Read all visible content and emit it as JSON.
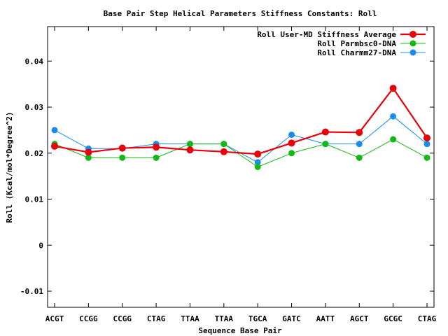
{
  "chart_data": {
    "type": "line",
    "title": "Base Pair Step Helical Parameters Stiffness Constants: Roll",
    "xlabel": "Sequence Base Pair",
    "ylabel": "Roll (Kcal/mol*Degree^2)",
    "categories": [
      "ACGT",
      "CCGG",
      "CCGG",
      "CTAG",
      "TTAA",
      "TTAA",
      "TGCA",
      "GATC",
      "AATT",
      "AGCT",
      "GCGC",
      "CTAG"
    ],
    "ylim": [
      -0.0135,
      0.0475
    ],
    "yticks": [
      -0.01,
      0,
      0.01,
      0.02,
      0.03,
      0.04
    ],
    "ytick_labels": [
      "-0.01",
      "0",
      "0.01",
      "0.02",
      "0.03",
      "0.04"
    ],
    "legend_position": "top-right",
    "series": [
      {
        "name": "Roll User-MD Stiffness Average",
        "color": "#e8000b",
        "values": [
          0.0215,
          0.0202,
          0.0211,
          0.0213,
          0.0207,
          0.0203,
          0.0198,
          0.0222,
          0.0246,
          0.0245,
          0.0341,
          0.0233
        ]
      },
      {
        "name": "Roll Parmbsc0-DNA",
        "color": "#14b814",
        "values": [
          0.022,
          0.019,
          0.019,
          0.019,
          0.022,
          0.022,
          0.017,
          0.02,
          0.022,
          0.019,
          0.023,
          0.019
        ]
      },
      {
        "name": "Roll Charmm27-DNA",
        "color": "#1a8cf0",
        "values": [
          0.025,
          0.021,
          0.021,
          0.022,
          0.022,
          0.022,
          0.018,
          0.024,
          0.022,
          0.022,
          0.028,
          0.022
        ]
      }
    ]
  }
}
